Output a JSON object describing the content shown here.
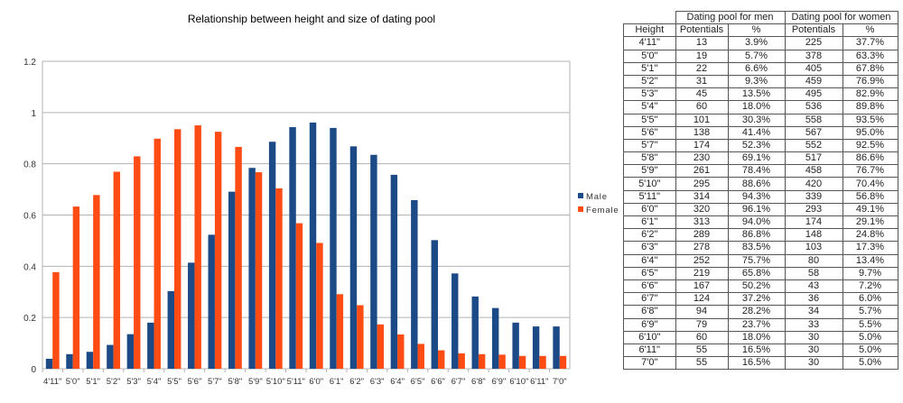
{
  "chart_data": {
    "type": "bar",
    "title": "Relationship between height and size of dating pool",
    "xlabel": "",
    "ylabel": "",
    "ylim": [
      0,
      1.2
    ],
    "yticks": [
      "0",
      "0.2",
      "0.4",
      "0.6",
      "0.8",
      "1",
      "1.2"
    ],
    "grid": true,
    "legend_position": "right",
    "categories": [
      "4'11\"",
      "5'0\"",
      "5'1\"",
      "5'2\"",
      "5'3\"",
      "5'4\"",
      "5'5\"",
      "5'6\"",
      "5'7\"",
      "5'8\"",
      "5'9\"",
      "5'10\"",
      "5'11\"",
      "6'0\"",
      "6'1\"",
      "6'2\"",
      "6'3\"",
      "6'4\"",
      "6'5\"",
      "6'6\"",
      "6'7\"",
      "6'8\"",
      "6'9\"",
      "6'10\"",
      "6'11\"",
      "7'0\""
    ],
    "series": [
      {
        "name": "Male",
        "color": "#1b4a86",
        "values": [
          0.039,
          0.057,
          0.066,
          0.093,
          0.135,
          0.18,
          0.303,
          0.414,
          0.523,
          0.691,
          0.784,
          0.886,
          0.943,
          0.961,
          0.94,
          0.868,
          0.835,
          0.757,
          0.658,
          0.502,
          0.372,
          0.282,
          0.237,
          0.18,
          0.165,
          0.165
        ]
      },
      {
        "name": "Female",
        "color": "#ff4b14",
        "values": [
          0.377,
          0.633,
          0.678,
          0.769,
          0.829,
          0.898,
          0.935,
          0.95,
          0.925,
          0.866,
          0.767,
          0.704,
          0.568,
          0.491,
          0.291,
          0.248,
          0.173,
          0.134,
          0.097,
          0.072,
          0.06,
          0.057,
          0.055,
          0.05,
          0.05,
          0.05
        ]
      }
    ]
  },
  "table": {
    "group_headers": [
      "Dating pool for men",
      "Dating pool for women"
    ],
    "columns": [
      "Height",
      "Potentials",
      "%",
      "Potentials",
      "%"
    ],
    "rows": [
      [
        "4'11\"",
        "13",
        "3.9%",
        "225",
        "37.7%"
      ],
      [
        "5'0\"",
        "19",
        "5.7%",
        "378",
        "63.3%"
      ],
      [
        "5'1\"",
        "22",
        "6.6%",
        "405",
        "67.8%"
      ],
      [
        "5'2\"",
        "31",
        "9.3%",
        "459",
        "76.9%"
      ],
      [
        "5'3\"",
        "45",
        "13.5%",
        "495",
        "82.9%"
      ],
      [
        "5'4\"",
        "60",
        "18.0%",
        "536",
        "89.8%"
      ],
      [
        "5'5\"",
        "101",
        "30.3%",
        "558",
        "93.5%"
      ],
      [
        "5'6\"",
        "138",
        "41.4%",
        "567",
        "95.0%"
      ],
      [
        "5'7\"",
        "174",
        "52.3%",
        "552",
        "92.5%"
      ],
      [
        "5'8\"",
        "230",
        "69.1%",
        "517",
        "86.6%"
      ],
      [
        "5'9\"",
        "261",
        "78.4%",
        "458",
        "76.7%"
      ],
      [
        "5'10\"",
        "295",
        "88.6%",
        "420",
        "70.4%"
      ],
      [
        "5'11\"",
        "314",
        "94.3%",
        "339",
        "56.8%"
      ],
      [
        "6'0\"",
        "320",
        "96.1%",
        "293",
        "49.1%"
      ],
      [
        "6'1\"",
        "313",
        "94.0%",
        "174",
        "29.1%"
      ],
      [
        "6'2\"",
        "289",
        "86.8%",
        "148",
        "24.8%"
      ],
      [
        "6'3\"",
        "278",
        "83.5%",
        "103",
        "17.3%"
      ],
      [
        "6'4\"",
        "252",
        "75.7%",
        "80",
        "13.4%"
      ],
      [
        "6'5\"",
        "219",
        "65.8%",
        "58",
        "9.7%"
      ],
      [
        "6'6\"",
        "167",
        "50.2%",
        "43",
        "7.2%"
      ],
      [
        "6'7\"",
        "124",
        "37.2%",
        "36",
        "6.0%"
      ],
      [
        "6'8\"",
        "94",
        "28.2%",
        "34",
        "5.7%"
      ],
      [
        "6'9\"",
        "79",
        "23.7%",
        "33",
        "5.5%"
      ],
      [
        "6'10\"",
        "60",
        "18.0%",
        "30",
        "5.0%"
      ],
      [
        "6'11\"",
        "55",
        "16.5%",
        "30",
        "5.0%"
      ],
      [
        "7'0\"",
        "55",
        "16.5%",
        "30",
        "5.0%"
      ]
    ]
  }
}
